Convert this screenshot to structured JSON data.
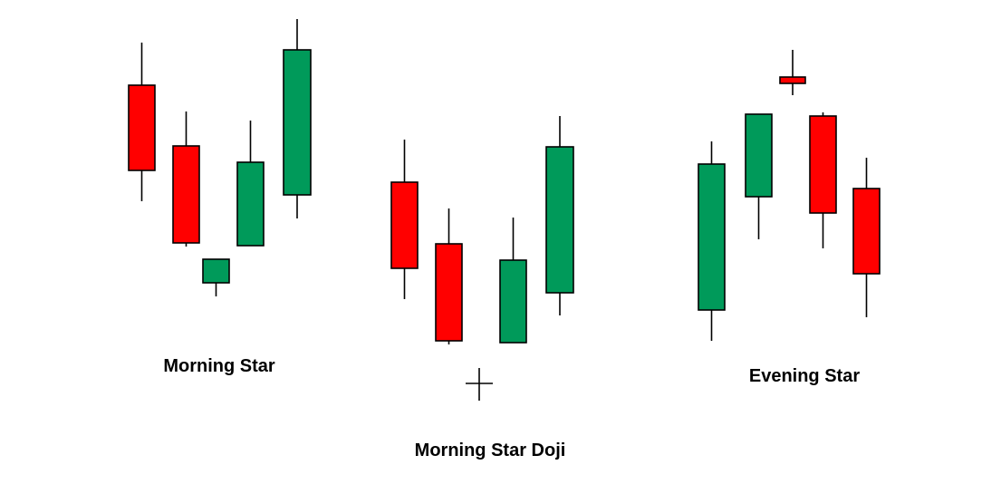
{
  "labels": {
    "morning_star": "Morning Star",
    "morning_star_doji": "Morning Star Doji",
    "evening_star": "Evening Star"
  }
}
